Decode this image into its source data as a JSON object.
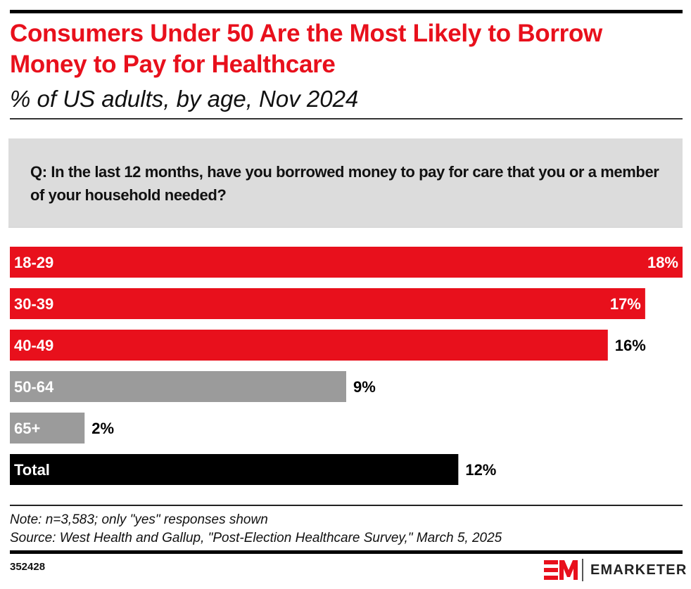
{
  "header": {
    "title": "Consumers Under 50 Are the Most Likely to Borrow Money to Pay for Healthcare",
    "subtitle": "% of US adults, by age, Nov 2024"
  },
  "question": "Q: In the last 12 months, have you borrowed money to pay for care that you or a member of your household needed?",
  "footer": {
    "note": "Note: n=3,583; only \"yes\" responses shown",
    "source": "Source: West Health and Gallup, \"Post-Election Healthcare Survey,\" March 5, 2025",
    "chart_id": "352428",
    "brand": "EMARKETER"
  },
  "colors": {
    "brand_red": "#e8101c",
    "gray_bar": "#9b9b9b",
    "total_bar": "#000000"
  },
  "chart_data": {
    "type": "bar",
    "orientation": "horizontal",
    "title": "Consumers Under 50 Are the Most Likely to Borrow Money to Pay for Healthcare",
    "subtitle": "% of US adults, by age, Nov 2024",
    "xlabel": "",
    "ylabel": "",
    "unit": "%",
    "xlim": [
      0,
      18
    ],
    "grid": false,
    "categories": [
      "18-29",
      "30-39",
      "40-49",
      "50-64",
      "65+",
      "Total"
    ],
    "values": [
      18,
      17,
      16,
      9,
      2,
      12
    ],
    "value_labels": [
      "18%",
      "17%",
      "16%",
      "9%",
      "2%",
      "12%"
    ],
    "bar_colors": [
      "#e8101c",
      "#e8101c",
      "#e8101c",
      "#9b9b9b",
      "#9b9b9b",
      "#000000"
    ]
  }
}
